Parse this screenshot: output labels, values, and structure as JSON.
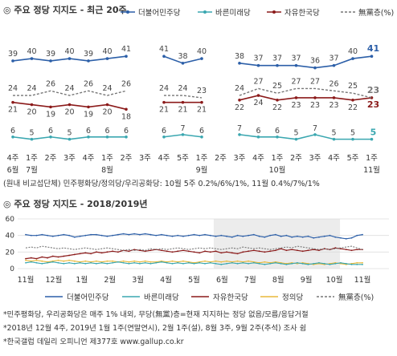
{
  "chart_data": [
    {
      "type": "line",
      "title": "◎ 주요 정당 지지도 - 최근 20주",
      "legend": [
        "더불어민주당",
        "바른미래당",
        "자유한국당",
        "無黨층(%)"
      ],
      "x_week_labels": [
        "4주",
        "1주",
        "2주",
        "3주",
        "4주",
        "1주",
        "2주",
        "3주",
        "4주",
        "5주",
        "1주",
        "2주",
        "3주",
        "4주",
        "1주",
        "2주",
        "3주",
        "4주",
        "5주",
        "1주"
      ],
      "x_month_labels": [
        {
          "label": "6월",
          "at": 0
        },
        {
          "label": "7월",
          "at": 1
        },
        {
          "label": "8월",
          "at": 5
        },
        {
          "label": "9월",
          "at": 10
        },
        {
          "label": "10월",
          "at": 14
        },
        {
          "label": "11월",
          "at": 19
        }
      ],
      "series": [
        {
          "name": "더불어민주당",
          "color": "#2c5fa8",
          "values": [
            39,
            40,
            39,
            40,
            39,
            40,
            41,
            null,
            41,
            38,
            40,
            null,
            38,
            37,
            37,
            37,
            36,
            37,
            40,
            41
          ]
        },
        {
          "name": "자유한국당",
          "color": "#8b1a1a",
          "values": [
            21,
            20,
            19,
            20,
            19,
            20,
            18,
            null,
            21,
            21,
            21,
            null,
            22,
            24,
            22,
            23,
            23,
            23,
            22,
            23
          ]
        },
        {
          "name": "無黨층(%)",
          "color": "#777777",
          "dashed": true,
          "values": [
            24,
            24,
            26,
            24,
            26,
            24,
            26,
            null,
            24,
            24,
            23,
            null,
            24,
            27,
            25,
            27,
            27,
            26,
            25,
            23
          ]
        },
        {
          "name": "바른미래당",
          "color": "#3aa7b0",
          "values": [
            6,
            5,
            6,
            5,
            6,
            6,
            6,
            null,
            6,
            7,
            6,
            null,
            7,
            6,
            6,
            5,
            7,
            5,
            5,
            5
          ]
        }
      ],
      "ylim": [
        0,
        55
      ],
      "footnote": "(원내 비교섭단체) 민주평화당/정의당/우리공화당: 10월 5주 0.2%/6%/1%, 11월 0.4%/7%/1%"
    },
    {
      "type": "line",
      "title": "◎ 주요 정당 지지도 - 2018/2019년",
      "y_ticks": [
        60,
        40,
        20,
        0
      ],
      "ylim": [
        0,
        60
      ],
      "months": [
        "11월",
        "12월",
        "1월",
        "2월",
        "3월",
        "4월",
        "5월",
        "6월",
        "7월",
        "8월",
        "9월",
        "10월",
        "11월"
      ],
      "shaded_range_months": [
        6.7,
        11.2
      ],
      "series": [
        {
          "name": "더불어민주당",
          "color": "#2c5fa8",
          "values": [
            41,
            40,
            40,
            41,
            40,
            39,
            40,
            41,
            40,
            38,
            39,
            40,
            41,
            41,
            40,
            39,
            40,
            41,
            42,
            41,
            42,
            41,
            42,
            41,
            40,
            41,
            40,
            39,
            40,
            39,
            40,
            41,
            40,
            41,
            40,
            39,
            40,
            39,
            38,
            40,
            39,
            40,
            41,
            39,
            38,
            40,
            41,
            39,
            40,
            38,
            39,
            38,
            39,
            37,
            38,
            39,
            40,
            38,
            37,
            36,
            37,
            40,
            41
          ]
        },
        {
          "name": "자유한국당",
          "color": "#8b1a1a",
          "values": [
            12,
            13,
            12,
            14,
            13,
            15,
            14,
            15,
            16,
            17,
            18,
            19,
            18,
            20,
            19,
            20,
            21,
            20,
            22,
            21,
            23,
            22,
            21,
            22,
            23,
            22,
            21,
            20,
            21,
            22,
            21,
            20,
            19,
            21,
            20,
            21,
            19,
            20,
            19,
            18,
            20,
            21,
            22,
            21,
            20,
            21,
            22,
            24,
            22,
            23,
            22,
            21,
            22,
            23,
            22,
            24,
            23,
            25,
            24,
            23,
            22,
            23,
            23
          ]
        },
        {
          "name": "無黨층(%)",
          "color": "#777777",
          "dashed": true,
          "values": [
            25,
            26,
            25,
            27,
            26,
            25,
            24,
            25,
            24,
            23,
            24,
            25,
            24,
            23,
            24,
            25,
            24,
            23,
            22,
            23,
            22,
            23,
            22,
            24,
            23,
            24,
            23,
            24,
            25,
            24,
            23,
            24,
            25,
            24,
            25,
            24,
            23,
            24,
            25,
            24,
            26,
            25,
            24,
            25,
            24,
            23,
            24,
            25,
            26,
            25,
            27,
            26,
            25,
            24,
            23,
            24,
            23,
            24,
            25,
            26,
            27,
            25,
            23
          ]
        },
        {
          "name": "정의당",
          "color": "#e8b93a",
          "values": [
            10,
            9,
            10,
            9,
            8,
            9,
            10,
            9,
            10,
            9,
            8,
            9,
            8,
            9,
            8,
            9,
            9,
            8,
            9,
            8,
            9,
            8,
            9,
            8,
            8,
            9,
            8,
            9,
            8,
            9,
            8,
            7,
            8,
            9,
            8,
            9,
            8,
            9,
            8,
            9,
            8,
            9,
            8,
            7,
            8,
            7,
            8,
            7,
            6,
            7,
            6,
            7,
            6,
            5,
            6,
            5,
            6,
            7,
            6,
            5,
            6,
            7,
            7
          ]
        },
        {
          "name": "바른미래당",
          "color": "#3aa7b0",
          "values": [
            7,
            8,
            7,
            6,
            7,
            8,
            7,
            6,
            7,
            6,
            7,
            6,
            7,
            6,
            7,
            6,
            7,
            8,
            7,
            6,
            7,
            6,
            7,
            6,
            7,
            8,
            7,
            6,
            7,
            6,
            7,
            6,
            7,
            6,
            7,
            6,
            5,
            6,
            7,
            6,
            7,
            6,
            7,
            6,
            5,
            6,
            7,
            6,
            5,
            6,
            7,
            6,
            5,
            6,
            7,
            6,
            5,
            6,
            7,
            6,
            5,
            5,
            5
          ]
        }
      ],
      "legend": [
        "더불어민주당",
        "바른미래당",
        "자유한국당",
        "정의당",
        "無黨층(%)"
      ]
    }
  ],
  "notes": [
    "*민주평화당, 우리공화당은 매주 1% 내외, 무당(無黨)층=현재 지지하는 정당 없음/모름/응답거절",
    "*2018년 12월 4주, 2019년 1월 1주(연말연시), 2월 1주(설), 8월 3주, 9월 2주(추석) 조사 쉼",
    "*한국갤럽 데일리 오피니언 제377호 www.gallup.co.kr"
  ],
  "colors": {
    "bg": "#ffffff",
    "shade": "#ececec",
    "grid": "#dddddd",
    "title": "#333333"
  }
}
